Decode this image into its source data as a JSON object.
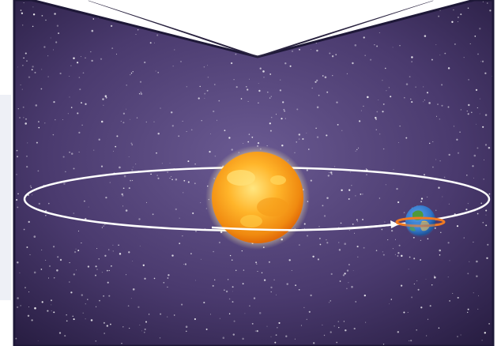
{
  "scene": {
    "subject": "sun-earth-orbit",
    "colors": {
      "space_dark": "#241a3d",
      "space_mid": "#4a3a6e",
      "space_light": "#6a5a92",
      "border": "#1e1838",
      "sun_core": "#ffd54a",
      "sun_edge": "#f08a10",
      "sun_glow": "#fff3b0",
      "orbit": "#ffffff",
      "earth_ocean": "#2f74c8",
      "earth_land": "#4e9a3a",
      "earth_desert": "#d8b45a",
      "earth_ring": "#f07a22",
      "backdrop": "#ffffff"
    },
    "icons": [
      "sun-icon",
      "earth-icon",
      "orbit-arrow-icon",
      "star-field"
    ]
  }
}
